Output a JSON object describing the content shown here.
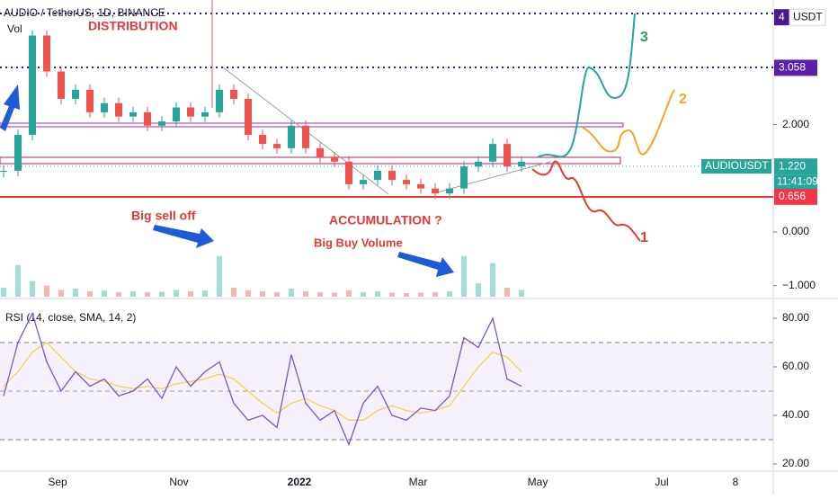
{
  "header": {
    "symbol": "AUDIO / TetherUS, 1D, BINANCE",
    "volume_label": "Vol",
    "rsi_label": "RSI (14, close, SMA, 14, 2)"
  },
  "annotations": {
    "distribution": "DISTRIBUTION",
    "sell_off": "Big sell off",
    "accumulation": "ACCUMULATION ?",
    "buy_volume": "Big Buy Volume",
    "scenario_1": "1",
    "scenario_2": "2",
    "scenario_3": "3"
  },
  "price_axis": {
    "ticks": [
      {
        "value": 2,
        "label": "2.000"
      },
      {
        "value": 0,
        "label": "0.000"
      },
      {
        "value": -1,
        "label": "−1.000"
      }
    ],
    "tags": [
      {
        "value": 4,
        "color": "#4a1a8c"
      },
      {
        "value": 3.058,
        "color": "#5b1fa8"
      },
      {
        "value": 1.22,
        "label": "1.220",
        "color": "#26a69a"
      },
      {
        "value": 0.656,
        "color": "#f23645"
      }
    ],
    "currency": "USDT",
    "symbol_tag": "AUDIOUSDT",
    "countdown": "11:41:09"
  },
  "rsi_axis": {
    "ticks": [
      {
        "value": 80,
        "label": "80.00"
      },
      {
        "value": 60,
        "label": "60.00"
      },
      {
        "value": 40,
        "label": "40.00"
      },
      {
        "value": 20,
        "label": "20.00"
      }
    ]
  },
  "x_axis": {
    "labels": [
      "Sep",
      "Nov",
      "2022",
      "Mar",
      "May",
      "Jul",
      "8"
    ]
  },
  "series": {
    "close": [
      1.14,
      1.81,
      3.66,
      2.99,
      2.48,
      2.65,
      2.23,
      2.4,
      2.15,
      2.23,
      1.98,
      2.06,
      2.32,
      2.15,
      2.23,
      2.65,
      2.48,
      1.81,
      1.64,
      1.56,
      1.98,
      1.56,
      1.39,
      1.31,
      0.89,
      0.97,
      1.14,
      0.97,
      0.89,
      0.81,
      0.72,
      0.81,
      1.22,
      1.31,
      1.64,
      1.22,
      1.31
    ],
    "volume": [
      20,
      70,
      35,
      25,
      15,
      18,
      12,
      14,
      10,
      12,
      10,
      11,
      15,
      12,
      14,
      90,
      20,
      14,
      12,
      10,
      18,
      12,
      10,
      9,
      14,
      10,
      12,
      9,
      8,
      9,
      10,
      12,
      90,
      30,
      75,
      20,
      15
    ],
    "rsi": [
      48,
      70,
      82,
      62,
      50,
      58,
      52,
      55,
      48,
      50,
      55,
      47,
      60,
      52,
      58,
      62,
      45,
      38,
      40,
      35,
      65,
      45,
      38,
      42,
      28,
      45,
      52,
      40,
      38,
      43,
      42,
      48,
      72,
      68,
      80,
      55,
      52
    ],
    "rsi_sma": [
      52,
      58,
      66,
      70,
      64,
      58,
      55,
      54,
      52,
      51,
      52,
      51,
      53,
      54,
      55,
      57,
      55,
      50,
      45,
      41,
      45,
      47,
      44,
      42,
      38,
      38,
      42,
      44,
      42,
      41,
      42,
      44,
      52,
      60,
      66,
      64,
      58
    ]
  }
}
